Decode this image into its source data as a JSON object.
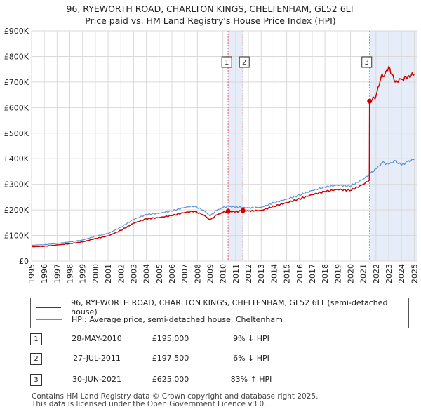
{
  "header": {
    "title_line1": "96, RYEWORTH ROAD, CHARLTON KINGS, CHELTENHAM, GL52 6LT",
    "title_line2": "Price paid vs. HM Land Registry's House Price Index (HPI)"
  },
  "colors": {
    "property_line": "#cc0000",
    "hpi_line": "#5b8ed6",
    "shade": "#dde6f5",
    "grid": "#d9d9d9",
    "marker_vline": "#e06060"
  },
  "chart_data": {
    "type": "line",
    "title": "Price paid vs. HM Land Registry's House Price Index (HPI)",
    "xlabel": "",
    "ylabel": "",
    "xlim": [
      1995,
      2025.2
    ],
    "ylim": [
      0,
      900000
    ],
    "x_ticks": [
      1995,
      1996,
      1997,
      1998,
      1999,
      2000,
      2001,
      2002,
      2003,
      2004,
      2005,
      2006,
      2007,
      2008,
      2009,
      2010,
      2011,
      2012,
      2013,
      2014,
      2015,
      2016,
      2017,
      2018,
      2019,
      2020,
      2021,
      2022,
      2023,
      2024,
      2025
    ],
    "y_ticks": [
      0,
      100000,
      200000,
      300000,
      400000,
      500000,
      600000,
      700000,
      800000,
      900000
    ],
    "y_tick_labels": [
      "£0",
      "£100K",
      "£200K",
      "£300K",
      "£400K",
      "£500K",
      "£600K",
      "£700K",
      "£800K",
      "£900K"
    ],
    "shaded_ranges": [
      [
        2010.41,
        2011.57
      ],
      [
        2021.5,
        2025.2
      ]
    ],
    "series": [
      {
        "name": "96, RYEWORTH ROAD, CHARLTON KINGS, CHELTENHAM, GL52 6LT (semi-detached house)",
        "color": "#cc0000",
        "x": [
          1995,
          1996,
          1997,
          1998,
          1999,
          2000,
          2001,
          2002,
          2003,
          2004,
          2005,
          2006,
          2007,
          2007.75,
          2008.5,
          2009,
          2009.5,
          2010,
          2010.41,
          2011,
          2011.57,
          2012,
          2013,
          2014,
          2015,
          2016,
          2017,
          2018,
          2019,
          2020,
          2021,
          2021.45,
          2021.5,
          2021.7,
          2022,
          2022.4,
          2022.7,
          2023,
          2023.5,
          2024,
          2024.5,
          2025
        ],
        "values": [
          56000,
          58000,
          63000,
          68000,
          75000,
          88000,
          98000,
          120000,
          148000,
          165000,
          170000,
          178000,
          190000,
          195000,
          180000,
          160000,
          180000,
          190000,
          195000,
          192000,
          197500,
          196000,
          198000,
          214000,
          228000,
          243000,
          260000,
          272000,
          280000,
          276000,
          300000,
          315000,
          625000,
          630000,
          645000,
          720000,
          730000,
          760000,
          700000,
          710000,
          720000,
          730000
        ]
      },
      {
        "name": "HPI: Average price, semi-detached house, Cheltenham",
        "color": "#5b8ed6",
        "x": [
          1995,
          1996,
          1997,
          1998,
          1999,
          2000,
          2001,
          2002,
          2003,
          2004,
          2005,
          2006,
          2007,
          2007.75,
          2008.5,
          2009,
          2009.5,
          2010,
          2010.41,
          2011,
          2011.57,
          2012,
          2013,
          2014,
          2015,
          2016,
          2017,
          2018,
          2019,
          2020,
          2021,
          2021.5,
          2022,
          2022.5,
          2023,
          2023.5,
          2024,
          2024.5,
          2025
        ],
        "values": [
          62000,
          64000,
          69000,
          75000,
          82000,
          97000,
          108000,
          132000,
          163000,
          182000,
          187000,
          196000,
          210000,
          215000,
          198000,
          176000,
          198000,
          209000,
          214000,
          211000,
          210000,
          208000,
          210000,
          228000,
          242000,
          258000,
          276000,
          289000,
          297000,
          293000,
          320000,
          340000,
          360000,
          385000,
          378000,
          392000,
          375000,
          388000,
          398000
        ]
      }
    ],
    "sale_markers": [
      {
        "label": "1",
        "x": 2010.41,
        "value": 195000
      },
      {
        "label": "2",
        "x": 2011.57,
        "value": 197500
      },
      {
        "label": "3",
        "x": 2021.5,
        "value": 625000
      }
    ]
  },
  "legend": {
    "items": [
      {
        "label": "96, RYEWORTH ROAD, CHARLTON KINGS, CHELTENHAM, GL52 6LT (semi-detached house)",
        "color": "#cc0000"
      },
      {
        "label": "HPI: Average price, semi-detached house, Cheltenham",
        "color": "#5b8ed6"
      }
    ]
  },
  "sales": [
    {
      "num": "1",
      "date": "28-MAY-2010",
      "price": "£195,000",
      "hpi": "9% ↓ HPI"
    },
    {
      "num": "2",
      "date": "27-JUL-2011",
      "price": "£197,500",
      "hpi": "6% ↓ HPI"
    },
    {
      "num": "3",
      "date": "30-JUN-2021",
      "price": "£625,000",
      "hpi": "83% ↑ HPI"
    }
  ],
  "footer": {
    "line1": "Contains HM Land Registry data © Crown copyright and database right 2025.",
    "line2": "This data is licensed under the Open Government Licence v3.0."
  }
}
